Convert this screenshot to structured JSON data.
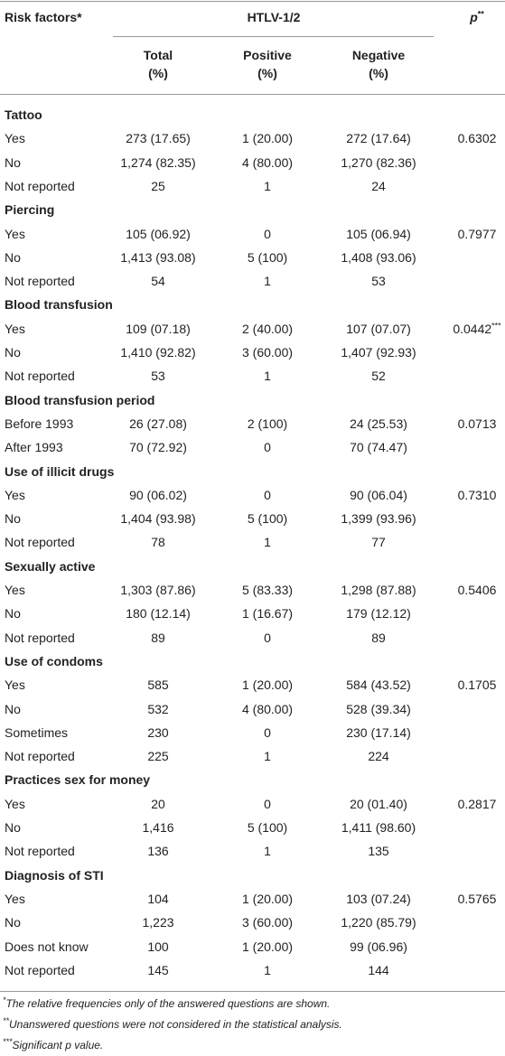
{
  "table": {
    "header": {
      "risk_factors": "Risk factors*",
      "group": "HTLV-1/2",
      "p": "p",
      "p_mark": "**",
      "columns": [
        [
          "Total",
          "(%)"
        ],
        [
          "Positive",
          "(%)"
        ],
        [
          "Negative",
          "(%)"
        ]
      ]
    },
    "sections": [
      {
        "title": "Tattoo",
        "rows": [
          [
            "Yes",
            "273 (17.65)",
            "1 (20.00)",
            "272 (17.64)",
            "0.6302"
          ],
          [
            "No",
            "1,274 (82.35)",
            "4 (80.00)",
            "1,270 (82.36)"
          ],
          [
            "Not reported",
            "25",
            "1",
            "24"
          ]
        ]
      },
      {
        "title": "Piercing",
        "rows": [
          [
            "Yes",
            "105 (06.92)",
            "0",
            "105 (06.94)",
            "0.7977"
          ],
          [
            "No",
            "1,413 (93.08)",
            "5 (100)",
            "1,408 (93.06)"
          ],
          [
            "Not reported",
            "54",
            "1",
            "53"
          ]
        ]
      },
      {
        "title": "Blood transfusion",
        "rows": [
          [
            "Yes",
            "109 (07.18)",
            "2 (40.00)",
            "107 (07.07)",
            "0.0442",
            "***"
          ],
          [
            "No",
            "1,410 (92.82)",
            "3 (60.00)",
            "1,407 (92.93)"
          ],
          [
            "Not reported",
            "53",
            "1",
            "52"
          ]
        ]
      },
      {
        "title": "Blood transfusion period",
        "rows": [
          [
            "Before 1993",
            "26 (27.08)",
            "2 (100)",
            "24 (25.53)",
            "0.0713"
          ],
          [
            "After 1993",
            "70 (72.92)",
            "0",
            "70 (74.47)"
          ]
        ]
      },
      {
        "title": "Use of illicit drugs",
        "rows": [
          [
            "Yes",
            "90 (06.02)",
            "0",
            "90 (06.04)",
            "0.7310"
          ],
          [
            "No",
            "1,404 (93.98)",
            "5 (100)",
            "1,399 (93.96)"
          ],
          [
            "Not reported",
            "78",
            "1",
            "77"
          ]
        ]
      },
      {
        "title": "Sexually active",
        "rows": [
          [
            "Yes",
            "1,303 (87.86)",
            "5 (83.33)",
            "1,298 (87.88)",
            "0.5406"
          ],
          [
            "No",
            "180 (12.14)",
            "1 (16.67)",
            "179 (12.12)"
          ],
          [
            "Not reported",
            "89",
            "0",
            "89"
          ]
        ]
      },
      {
        "title": "Use of condoms",
        "rows": [
          [
            "Yes",
            "585",
            "1 (20.00)",
            "584 (43.52)",
            "0.1705"
          ],
          [
            "No",
            "532",
            "4 (80.00)",
            "528 (39.34)"
          ],
          [
            "Sometimes",
            "230",
            "0",
            "230 (17.14)"
          ],
          [
            "Not reported",
            "225",
            "1",
            "224"
          ]
        ]
      },
      {
        "title": "Practices sex for money",
        "rows": [
          [
            "Yes",
            "20",
            "0",
            "20 (01.40)",
            "0.2817"
          ],
          [
            "No",
            "1,416",
            "5 (100)",
            "1,411 (98.60)"
          ],
          [
            "Not reported",
            "136",
            "1",
            "135"
          ]
        ]
      },
      {
        "title": "Diagnosis of STI",
        "rows": [
          [
            "Yes",
            "104",
            "1 (20.00)",
            "103 (07.24)",
            "0.5765"
          ],
          [
            "No",
            "1,223",
            "3 (60.00)",
            "1,220 (85.79)"
          ],
          [
            "Does not know",
            "100",
            "1 (20.00)",
            "99 (06.96)"
          ],
          [
            "Not reported",
            "145",
            "1",
            "144"
          ]
        ]
      }
    ],
    "footnotes": [
      {
        "mark": "*",
        "text": "The relative frequencies only of the answered questions are shown."
      },
      {
        "mark": "**",
        "text": "Unanswered questions were not considered in the statistical analysis."
      },
      {
        "mark": "***",
        "text": "Significant p value."
      }
    ]
  }
}
